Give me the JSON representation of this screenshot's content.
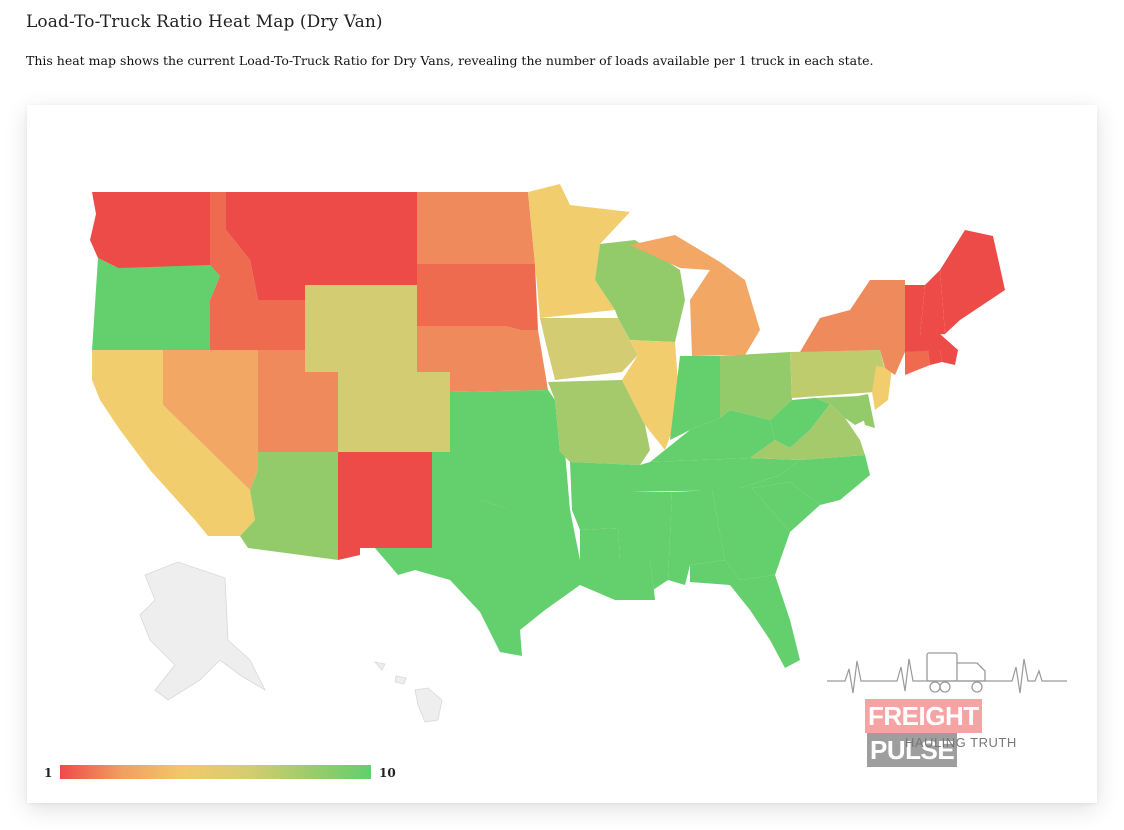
{
  "header": {
    "title": "Load-To-Truck Ratio Heat Map (Dry Van)",
    "description": "This heat map shows the current Load-To-Truck Ratio for Dry Vans, revealing the number of loads available per 1 truck in each state."
  },
  "legend": {
    "min_label": "1",
    "max_label": "10",
    "colors": [
      "#ef4a4a",
      "#f0a060",
      "#f2c86c",
      "#d6cd70",
      "#9ecb6c",
      "#63cf6d"
    ]
  },
  "logo": {
    "brand_word_1": "FREIGHT",
    "brand_word_2": "PULSE",
    "tagline": "HAULING TRUTH"
  },
  "map_data": {
    "colors": {
      "red": "#ed4b48",
      "red_orange": "#ee6b50",
      "orange": "#ef8a5c",
      "light_orange": "#f2a764",
      "yellow": "#f2cd6e",
      "olive": "#d4cc72",
      "light_green": "#bfcc6e",
      "green_yellow": "#a4ca6c",
      "green": "#93cb6b",
      "bright_green": "#63cf6d",
      "inset_gray": "#eeeeee"
    },
    "state_colors": {
      "WA": "red",
      "OR": "bright_green",
      "CA": "yellow",
      "ID": "red_orange",
      "NV": "light_orange",
      "MT": "red",
      "WY": "olive",
      "UT": "orange",
      "AZ": "green",
      "CO": "olive",
      "NM": "red",
      "ND": "orange",
      "SD": "red_orange",
      "NE": "orange",
      "KS": "bright_green",
      "OK": "bright_green",
      "TX": "bright_green",
      "MN": "yellow",
      "IA": "olive",
      "MO": "green_yellow",
      "AR": "bright_green",
      "LA": "bright_green",
      "WI": "green",
      "IL": "yellow",
      "MI": "light_orange",
      "IN": "bright_green",
      "OH": "green",
      "KY": "bright_green",
      "TN": "bright_green",
      "MS": "bright_green",
      "AL": "bright_green",
      "GA": "bright_green",
      "FL": "bright_green",
      "SC": "bright_green",
      "NC": "bright_green",
      "VA": "green_yellow",
      "WV": "bright_green",
      "PA": "light_green",
      "NY": "orange",
      "NJ": "yellow",
      "DE": "green",
      "MD": "green",
      "CT": "red_orange",
      "RI": "red",
      "MA": "red",
      "VT": "red",
      "NH": "red",
      "ME": "red",
      "AK": "inset_gray",
      "HI": "inset_gray"
    }
  }
}
